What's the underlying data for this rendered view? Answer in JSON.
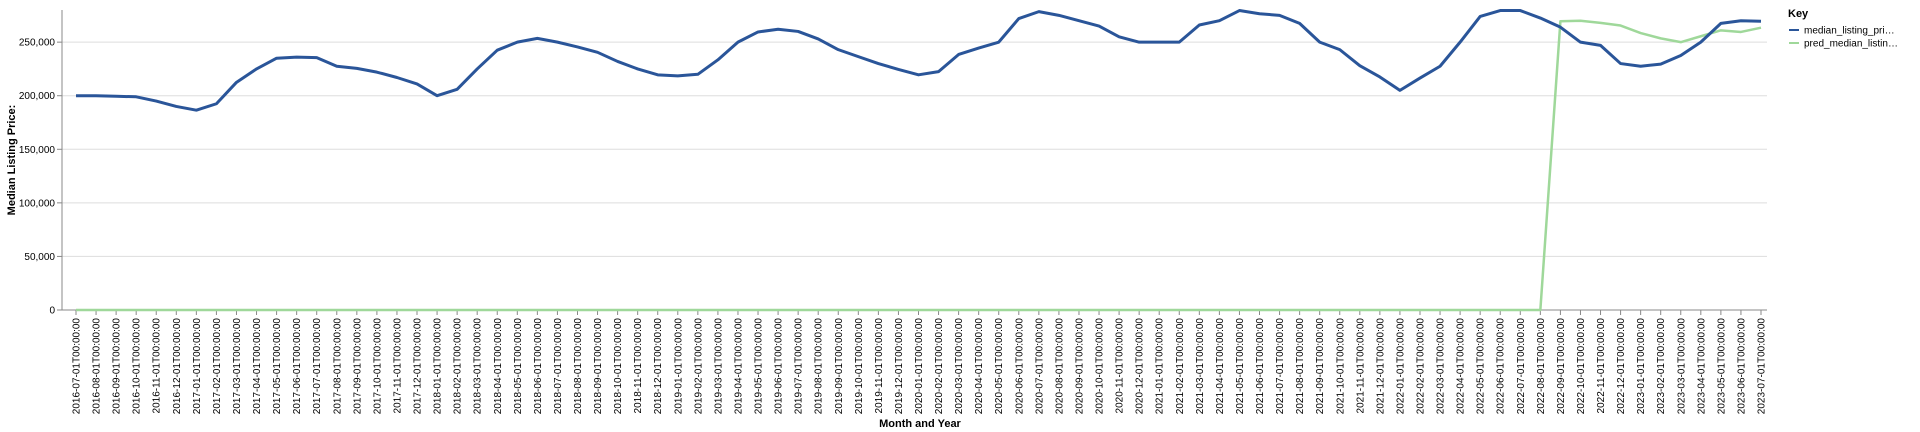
{
  "chart_data": {
    "type": "line",
    "xlabel": "Month and Year",
    "ylabel": "Median Listing Price:",
    "ylim": [
      0,
      280000
    ],
    "yticks": [
      0,
      50000,
      100000,
      150000,
      200000,
      250000
    ],
    "ytick_labels": [
      "0",
      "50,000",
      "100,000",
      "150,000",
      "200,000",
      "250,000"
    ],
    "grid": true,
    "legend_title": "Key",
    "legend_position": "right",
    "x": [
      "2016-07-01T00:00:00",
      "2016-08-01T00:00:00",
      "2016-09-01T00:00:00",
      "2016-10-01T00:00:00",
      "2016-11-01T00:00:00",
      "2016-12-01T00:00:00",
      "2017-01-01T00:00:00",
      "2017-02-01T00:00:00",
      "2017-03-01T00:00:00",
      "2017-04-01T00:00:00",
      "2017-05-01T00:00:00",
      "2017-06-01T00:00:00",
      "2017-07-01T00:00:00",
      "2017-08-01T00:00:00",
      "2017-09-01T00:00:00",
      "2017-10-01T00:00:00",
      "2017-11-01T00:00:00",
      "2017-12-01T00:00:00",
      "2018-01-01T00:00:00",
      "2018-02-01T00:00:00",
      "2018-03-01T00:00:00",
      "2018-04-01T00:00:00",
      "2018-05-01T00:00:00",
      "2018-06-01T00:00:00",
      "2018-07-01T00:00:00",
      "2018-08-01T00:00:00",
      "2018-09-01T00:00:00",
      "2018-10-01T00:00:00",
      "2018-11-01T00:00:00",
      "2018-12-01T00:00:00",
      "2019-01-01T00:00:00",
      "2019-02-01T00:00:00",
      "2019-03-01T00:00:00",
      "2019-04-01T00:00:00",
      "2019-05-01T00:00:00",
      "2019-06-01T00:00:00",
      "2019-07-01T00:00:00",
      "2019-08-01T00:00:00",
      "2019-09-01T00:00:00",
      "2019-10-01T00:00:00",
      "2019-11-01T00:00:00",
      "2019-12-01T00:00:00",
      "2020-01-01T00:00:00",
      "2020-02-01T00:00:00",
      "2020-03-01T00:00:00",
      "2020-04-01T00:00:00",
      "2020-05-01T00:00:00",
      "2020-06-01T00:00:00",
      "2020-07-01T00:00:00",
      "2020-08-01T00:00:00",
      "2020-09-01T00:00:00",
      "2020-10-01T00:00:00",
      "2020-11-01T00:00:00",
      "2020-12-01T00:00:00",
      "2021-01-01T00:00:00",
      "2021-02-01T00:00:00",
      "2021-03-01T00:00:00",
      "2021-04-01T00:00:00",
      "2021-05-01T00:00:00",
      "2021-06-01T00:00:00",
      "2021-07-01T00:00:00",
      "2021-08-01T00:00:00",
      "2021-09-01T00:00:00",
      "2021-10-01T00:00:00",
      "2021-11-01T00:00:00",
      "2021-12-01T00:00:00",
      "2022-01-01T00:00:00",
      "2022-02-01T00:00:00",
      "2022-03-01T00:00:00",
      "2022-04-01T00:00:00",
      "2022-05-01T00:00:00",
      "2022-06-01T00:00:00",
      "2022-07-01T00:00:00",
      "2022-08-01T00:00:00",
      "2022-09-01T00:00:00",
      "2022-10-01T00:00:00",
      "2022-11-01T00:00:00",
      "2022-12-01T00:00:00",
      "2023-01-01T00:00:00",
      "2023-02-01T00:00:00",
      "2023-03-01T00:00:00",
      "2023-04-01T00:00:00",
      "2023-05-01T00:00:00",
      "2023-06-01T00:00:00",
      "2023-07-01T00:00:00"
    ],
    "series": [
      {
        "name": "median_listing_pri…",
        "color": "#2a5599",
        "values": [
          200000,
          200000,
          199500,
          199000,
          195000,
          190000,
          186500,
          192500,
          212500,
          225000,
          235000,
          236000,
          235500,
          227500,
          225500,
          222000,
          217000,
          211000,
          200000,
          206000,
          225000,
          242500,
          250000,
          253500,
          250000,
          245500,
          240500,
          232000,
          225000,
          219500,
          218500,
          220000,
          233500,
          250000,
          259500,
          262000,
          260000,
          253000,
          243000,
          236500,
          230000,
          224500,
          219500,
          222500,
          238500,
          244500,
          250000,
          272000,
          278500,
          275000,
          270000,
          265000,
          255000,
          250000,
          250000,
          250000,
          266000,
          270000,
          279500,
          276500,
          275000,
          267500,
          250000,
          243000,
          228000,
          217500,
          205000,
          216500,
          227500,
          250000,
          274000,
          279500,
          279500,
          272500,
          264000,
          250000,
          247000,
          230000,
          227500,
          229500,
          237500,
          250000,
          267500,
          270000,
          269500
        ]
      },
      {
        "name": "pred_median_listin…",
        "color": "#9fd89a",
        "values": [
          0,
          0,
          0,
          0,
          0,
          0,
          0,
          0,
          0,
          0,
          0,
          0,
          0,
          0,
          0,
          0,
          0,
          0,
          0,
          0,
          0,
          0,
          0,
          0,
          0,
          0,
          0,
          0,
          0,
          0,
          0,
          0,
          0,
          0,
          0,
          0,
          0,
          0,
          0,
          0,
          0,
          0,
          0,
          0,
          0,
          0,
          0,
          0,
          0,
          0,
          0,
          0,
          0,
          0,
          0,
          0,
          0,
          0,
          0,
          0,
          0,
          0,
          0,
          0,
          0,
          0,
          0,
          0,
          0,
          0,
          0,
          0,
          0,
          0,
          269500,
          270000,
          268000,
          265500,
          258500,
          253500,
          250000,
          255500,
          261000,
          259500,
          263500
        ]
      }
    ]
  }
}
